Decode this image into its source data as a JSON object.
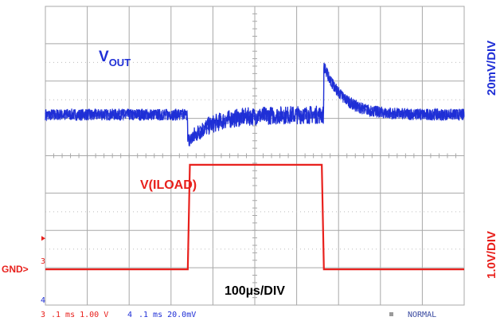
{
  "chart_data": {
    "type": "line",
    "title": "",
    "xlabel": "100µs/DIV",
    "grid": true,
    "x_range_us": [
      0,
      1000
    ],
    "series": [
      {
        "name": "VOUT",
        "label_main": "V",
        "label_sub": "OUT",
        "scale_label": "20mV/DIV",
        "color": "#1f2fd6",
        "units": "mV",
        "steady_value": 0,
        "load_step_on_us": 340,
        "undershoot": -15,
        "load_step_off_us": 665,
        "overshoot": 26,
        "noise_pp": 6
      },
      {
        "name": "V(ILOAD)",
        "scale_label": "1.0V/DIV",
        "color": "#e8201c",
        "units": "V",
        "x": [
          0,
          340,
          345,
          660,
          665,
          1000
        ],
        "y": [
          0,
          0,
          2.8,
          2.8,
          0,
          0
        ]
      }
    ],
    "ground_marker": "GND>",
    "channel_markers": [
      "3",
      "4"
    ]
  },
  "status_bar": {
    "ch3_number": "3",
    "ch3_settings": ".1 ms 1.00 V",
    "ch4_number": "4",
    "ch4_settings": ".1 ms 20.0mV",
    "mode": "NORMAL"
  },
  "colors": {
    "grid": "#a8a8a8",
    "grid_dots": "#bcbcbc",
    "ch3": "#e8201c",
    "ch4": "#1f2fd6"
  }
}
